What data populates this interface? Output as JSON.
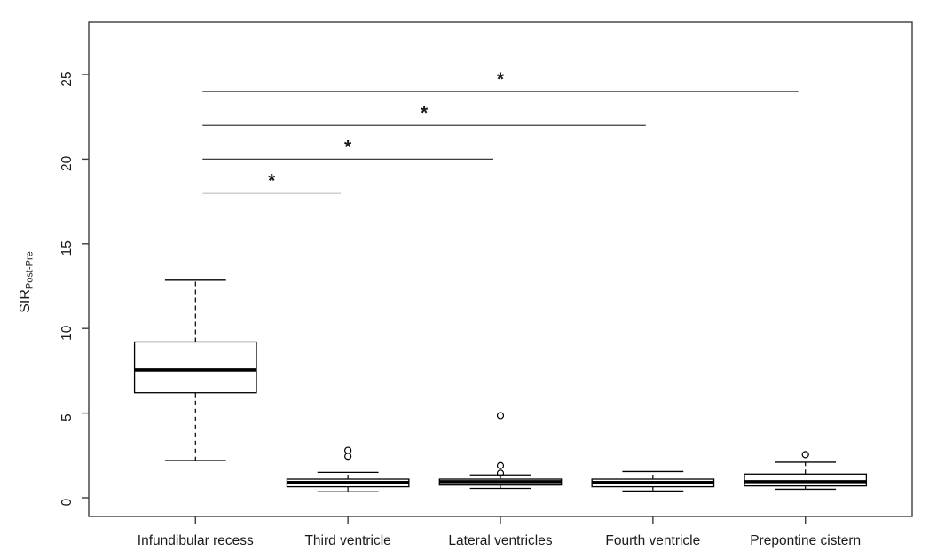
{
  "figure": {
    "background": "#ffffff",
    "title": ""
  },
  "chart_data": {
    "type": "boxplot",
    "title": "",
    "ylabel_main": "SIR",
    "ylabel_subscript": "Post-Pre",
    "ylim": [
      0,
      27.5
    ],
    "yticks": [
      0,
      5,
      10,
      15,
      20,
      25
    ],
    "ytick_labels": [
      "0",
      "5",
      "10",
      "15",
      "20",
      "25"
    ],
    "grid": false,
    "box_around_plot": true,
    "whisker_line_style": "dashed",
    "categories": [
      "Infundibular recess",
      "Third ventricle",
      "Lateral ventricles",
      "Fourth ventricle",
      "Prepontine cistern"
    ],
    "boxes": [
      {
        "category": "Infundibular recess",
        "whisker_low": 2.2,
        "q1": 6.2,
        "median": 7.55,
        "q3": 9.2,
        "whisker_high": 12.85,
        "outliers": []
      },
      {
        "category": "Third ventricle",
        "whisker_low": 0.35,
        "q1": 0.65,
        "median": 0.9,
        "q3": 1.1,
        "whisker_high": 1.5,
        "outliers": [
          2.45,
          2.8
        ]
      },
      {
        "category": "Lateral ventricles",
        "whisker_low": 0.55,
        "q1": 0.75,
        "median": 0.95,
        "q3": 1.1,
        "whisker_high": 1.35,
        "outliers": [
          1.45,
          1.9,
          4.85
        ]
      },
      {
        "category": "Fourth ventricle",
        "whisker_low": 0.4,
        "q1": 0.65,
        "median": 0.9,
        "q3": 1.1,
        "whisker_high": 1.55,
        "outliers": []
      },
      {
        "category": "Prepontine cistern",
        "whisker_low": 0.5,
        "q1": 0.7,
        "median": 0.95,
        "q3": 1.4,
        "whisker_high": 2.1,
        "outliers": [
          2.55
        ]
      }
    ],
    "significance_bars": [
      {
        "from": "Infundibular recess",
        "to": "Third ventricle",
        "y": 18,
        "label": "*"
      },
      {
        "from": "Infundibular recess",
        "to": "Lateral ventricles",
        "y": 20,
        "label": "*"
      },
      {
        "from": "Infundibular recess",
        "to": "Fourth ventricle",
        "y": 22,
        "label": "*"
      },
      {
        "from": "Infundibular recess",
        "to": "Prepontine cistern",
        "y": 24,
        "label": "*"
      }
    ],
    "colors": {
      "axis": "#3c3c3c",
      "box_border": "#000000",
      "median": "#000000",
      "significance_line": "#3c3c3c",
      "text": "#1a1a1a",
      "background": "#ffffff"
    }
  }
}
